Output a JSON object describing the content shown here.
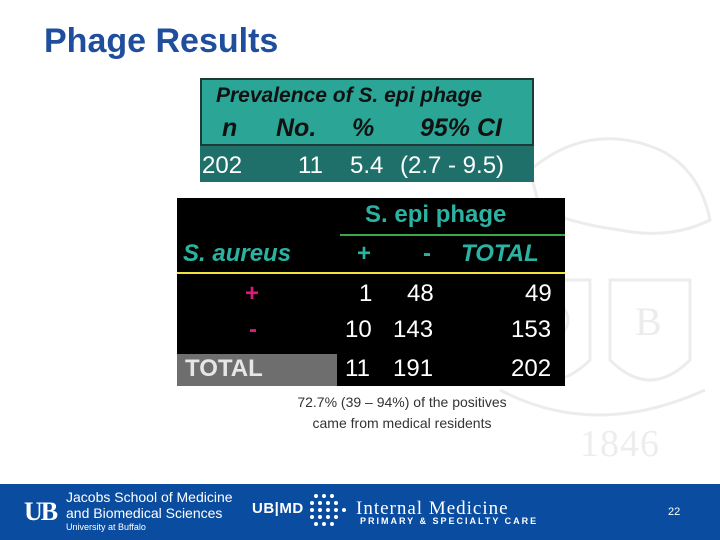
{
  "slide": {
    "title": "Phage Results",
    "page_number": "22"
  },
  "table1": {
    "caption": "Prevalence of S. epi phage",
    "headers": [
      "n",
      "No.",
      "%",
      "95% CI"
    ],
    "row": [
      "202",
      "11",
      "5.4",
      "(2.7 - 9.5)"
    ]
  },
  "table2": {
    "group_header": "S. epi phage",
    "row_header": "S. aureus",
    "col_headers": [
      "+",
      "-",
      "TOTAL"
    ],
    "rows": [
      {
        "label": "+",
        "values": [
          "1",
          "48",
          "49"
        ]
      },
      {
        "label": "-",
        "values": [
          "10",
          "143",
          "153"
        ]
      },
      {
        "label": "TOTAL",
        "values": [
          "11",
          "191",
          "202"
        ]
      }
    ]
  },
  "note": "72.7% (39 – 94%) of the positives came from medical residents",
  "watermark": {
    "year": "1846"
  },
  "footer": {
    "ub_logo": "UB",
    "school_line1": "Jacobs School of Medicine",
    "school_line2": "and Biomedical Sciences",
    "school_line3": "University at Buffalo",
    "ubmd": "UB|MD",
    "dept_name": "Internal Medicine",
    "dept_sub": "PRIMARY & SPECIALTY CARE"
  },
  "colors": {
    "title": "#1f4e9c",
    "teal": "#2aa596",
    "dark_teal": "#1f6f6a",
    "magenta": "#e0187a",
    "footer": "#0a4da0"
  }
}
